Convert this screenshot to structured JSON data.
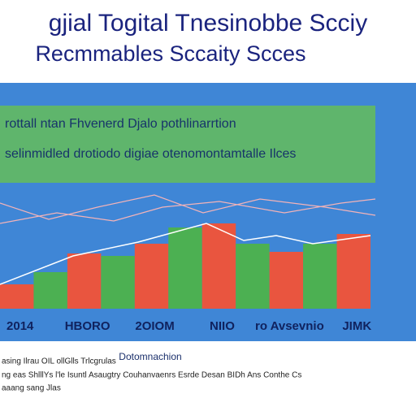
{
  "chart_data": {
    "type": "bar",
    "title": "gjial Togital Tnesinobbe Scciy",
    "subtitle": "Recmmables Sccaity Scces",
    "banner": [
      "rottall ntan Fhvenerd Djalo pothlinarrtion",
      "selinmidled drotiodo digiae otenomontamtalle Ilces"
    ],
    "x_label": "Dotomnachion",
    "categories": [
      "2014",
      null,
      "HBORO",
      null,
      "2OIOM",
      null,
      "NIIO",
      null,
      "ro Avsevnio",
      null,
      "JIMK"
    ],
    "values": [
      30,
      45,
      68,
      65,
      80,
      100,
      105,
      80,
      70,
      80,
      92
    ],
    "colors": [
      "#e9553f",
      "#4cb052",
      "#e9553f",
      "#4cb052",
      "#e9553f",
      "#4cb052",
      "#e9553f",
      "#4cb052",
      "#e9553f",
      "#4cb052",
      "#e9553f"
    ],
    "ylim": [
      0,
      120
    ],
    "footer": [
      "asing Ilrau OIL ollGlls Trlcgrulas",
      "ng eas ShlllYs l'le Isuntl Asaugtry Couhanvaenrs Esrde Desan BIDh Ans Conthe Cs",
      "aaang sang Jlas"
    ]
  }
}
